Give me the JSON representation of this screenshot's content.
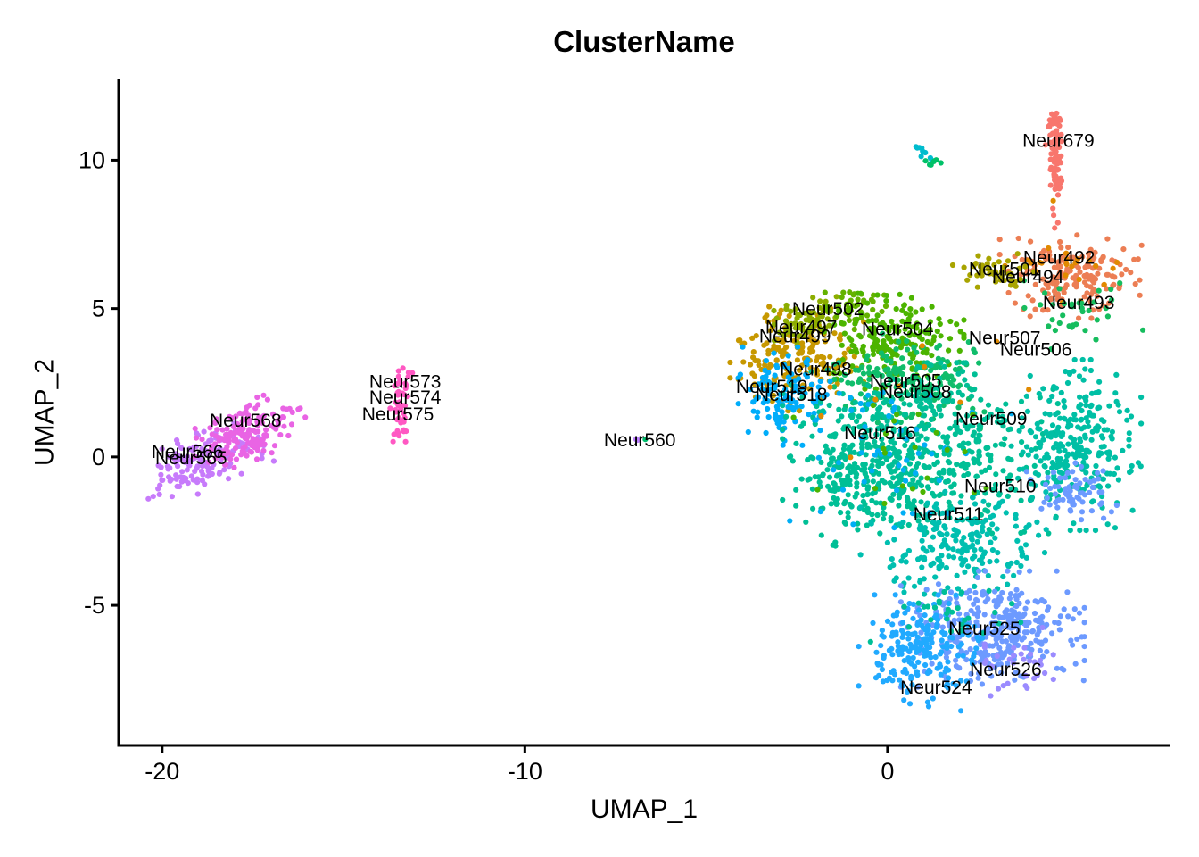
{
  "chart_data": {
    "type": "scatter",
    "title": "ClusterName",
    "xlabel": "UMAP_1",
    "ylabel": "UMAP_2",
    "xlim": [
      -21.2,
      7.8
    ],
    "ylim": [
      -9.72,
      12.75
    ],
    "x_ticks": [
      -20,
      -10,
      0
    ],
    "y_ticks": [
      -5,
      0,
      5,
      10
    ],
    "grid": false,
    "legend": "none",
    "background": "#FFFFFF",
    "axis_color": "#000000",
    "point_radius_px": 3.1,
    "cluster_labels": [
      {
        "text": "Neur566",
        "x": -19.3,
        "y": 0.16
      },
      {
        "text": "Neur565",
        "x": -19.2,
        "y": -0.05
      },
      {
        "text": "Neur568",
        "x": -17.7,
        "y": 1.21
      },
      {
        "text": "Neur573",
        "x": -13.3,
        "y": 2.53
      },
      {
        "text": "Neur574",
        "x": -13.3,
        "y": 1.99
      },
      {
        "text": "Neur575",
        "x": -13.5,
        "y": 1.42
      },
      {
        "text": "Neur560",
        "x": -6.83,
        "y": 0.55
      },
      {
        "text": "Neur679",
        "x": 4.71,
        "y": 10.65
      },
      {
        "text": "Neur492",
        "x": 4.73,
        "y": 6.71
      },
      {
        "text": "Neur501",
        "x": 3.23,
        "y": 6.32
      },
      {
        "text": "Neur494",
        "x": 3.87,
        "y": 6.05
      },
      {
        "text": "Neur493",
        "x": 5.27,
        "y": 5.18
      },
      {
        "text": "Neur502",
        "x": -1.64,
        "y": 4.97
      },
      {
        "text": "Neur497",
        "x": -2.38,
        "y": 4.36
      },
      {
        "text": "Neur499",
        "x": -2.55,
        "y": 4.06
      },
      {
        "text": "Neur504",
        "x": 0.28,
        "y": 4.3
      },
      {
        "text": "Neur507",
        "x": 3.23,
        "y": 4.0
      },
      {
        "text": "Neur506",
        "x": 4.09,
        "y": 3.61
      },
      {
        "text": "Neur498",
        "x": -1.98,
        "y": 2.95
      },
      {
        "text": "Neur505",
        "x": 0.5,
        "y": 2.56
      },
      {
        "text": "Neur519",
        "x": -3.19,
        "y": 2.35
      },
      {
        "text": "Neur518",
        "x": -2.65,
        "y": 2.08
      },
      {
        "text": "Neur508",
        "x": 0.77,
        "y": 2.17
      },
      {
        "text": "Neur516",
        "x": -0.21,
        "y": 0.79
      },
      {
        "text": "Neur509",
        "x": 2.86,
        "y": 1.27
      },
      {
        "text": "Neur510",
        "x": 3.11,
        "y": -0.99
      },
      {
        "text": "Neur511",
        "x": 1.68,
        "y": -1.95
      },
      {
        "text": "Neur525",
        "x": 2.67,
        "y": -5.8
      },
      {
        "text": "Neur526",
        "x": 3.26,
        "y": -7.18
      },
      {
        "text": "Neur524",
        "x": 1.34,
        "y": -7.78
      }
    ],
    "point_groups": [
      {
        "name": "violet-565-566",
        "color": "#C77BFB",
        "type": "blob",
        "cx": -19.0,
        "cy": -0.15,
        "sdx": 0.8,
        "sdy": 0.42,
        "rot": 28,
        "n": 140
      },
      {
        "name": "magenta-568",
        "color": "#E964E4",
        "type": "blob",
        "cx": -17.7,
        "cy": 0.8,
        "sdx": 0.75,
        "sdy": 0.4,
        "rot": 28,
        "n": 150
      },
      {
        "name": "hotpink-573-575",
        "color": "#FF58C3",
        "type": "streak",
        "x1": -13.35,
        "y1": 2.95,
        "x2": -13.5,
        "y2": 0.6,
        "jitter": 0.13,
        "n": 48
      },
      {
        "name": "violet-560-dot",
        "color": "#BD80FF",
        "type": "blob",
        "cx": -6.9,
        "cy": 0.57,
        "sdx": 0.05,
        "sdy": 0.04,
        "rot": 0,
        "n": 2
      },
      {
        "name": "green-560-dot",
        "color": "#00BE6E",
        "type": "blob",
        "cx": -6.7,
        "cy": 0.63,
        "sdx": 0.04,
        "sdy": 0.03,
        "rot": 0,
        "n": 1
      },
      {
        "name": "teal-top-streak",
        "color": "#00BCCE",
        "color2": "#00C168",
        "type": "streak",
        "x1": 0.78,
        "y1": 10.42,
        "x2": 1.32,
        "y2": 9.85,
        "jitter": 0.09,
        "n": 16
      },
      {
        "name": "salmon-679-streak",
        "color": "#F8766D",
        "type": "streak",
        "x1": 4.55,
        "y1": 11.58,
        "x2": 4.66,
        "y2": 9.0,
        "jitter": 0.11,
        "n": 78
      },
      {
        "name": "orange-679-tail-dot",
        "color": "#DE8C00",
        "type": "blob",
        "cx": 4.58,
        "cy": 8.66,
        "sdx": 0.03,
        "sdy": 0.03,
        "rot": 0,
        "n": 1
      },
      {
        "name": "salmon-679-tail",
        "color": "#F8766D",
        "type": "streak",
        "x1": 4.6,
        "y1": 8.35,
        "x2": 4.64,
        "y2": 7.7,
        "jitter": 0.04,
        "n": 4
      },
      {
        "name": "coral-492-493-494",
        "color": "#EC7E54",
        "type": "blob",
        "cx": 5.05,
        "cy": 6.1,
        "sdx": 0.85,
        "sdy": 0.62,
        "rot": 0,
        "n": 175
      },
      {
        "name": "orange-sprinkles-top",
        "color": "#E18A00",
        "type": "blob",
        "cx": 4.9,
        "cy": 6.35,
        "sdx": 0.75,
        "sdy": 0.5,
        "rot": 0,
        "n": 22
      },
      {
        "name": "green-under-coral",
        "color": "#16BD5E",
        "type": "blob",
        "cx": 5.2,
        "cy": 4.75,
        "sdx": 0.8,
        "sdy": 0.55,
        "rot": 0,
        "n": 35
      },
      {
        "name": "olive-501",
        "color": "#A8A400",
        "type": "blob",
        "cx": 3.05,
        "cy": 6.25,
        "sdx": 0.55,
        "sdy": 0.32,
        "rot": 0,
        "n": 45
      },
      {
        "name": "gold-497-498-499",
        "color": "#C79800",
        "type": "blob",
        "cx": -2.5,
        "cy": 3.35,
        "sdx": 0.8,
        "sdy": 0.78,
        "rot": 0,
        "n": 190
      },
      {
        "name": "oliveband-502",
        "color": "#8CAD00",
        "color2": "#64B200",
        "type": "streak",
        "x1": -3.0,
        "y1": 4.35,
        "x2": -0.4,
        "y2": 5.25,
        "jitter": 0.3,
        "n": 110
      },
      {
        "name": "green-504",
        "color": "#4CB400",
        "type": "blob",
        "cx": 0.15,
        "cy": 3.9,
        "sdx": 0.85,
        "sdy": 0.7,
        "rot": 0,
        "n": 200
      },
      {
        "name": "spring-505-508",
        "color": "#10BD6B",
        "type": "blob",
        "cx": 0.6,
        "cy": 2.55,
        "sdx": 0.9,
        "sdy": 0.7,
        "rot": 0,
        "n": 190
      },
      {
        "name": "skyblue-518-519",
        "color": "#00ADFA",
        "type": "blob",
        "cx": -2.85,
        "cy": 2.05,
        "sdx": 0.55,
        "sdy": 0.72,
        "rot": 0,
        "n": 120
      },
      {
        "name": "teal-main",
        "color": "#00BF96",
        "type": "blob",
        "cx": 0.9,
        "cy": 0.3,
        "sdx": 1.65,
        "sdy": 1.25,
        "rot": 0,
        "n": 520
      },
      {
        "name": "teal-right-lobe",
        "color": "#00BFA5",
        "type": "blob",
        "cx": 5.15,
        "cy": 0.4,
        "sdx": 0.8,
        "sdy": 1.25,
        "rot": 0,
        "n": 270
      },
      {
        "name": "teal-lower",
        "color": "#00BFB0",
        "type": "blob",
        "cx": 1.9,
        "cy": -2.9,
        "sdx": 1.15,
        "sdy": 0.75,
        "rot": 0,
        "n": 200
      },
      {
        "name": "teal-left-arm",
        "color": "#00BF96",
        "type": "blob",
        "cx": -0.8,
        "cy": -0.7,
        "sdx": 0.75,
        "sdy": 1.0,
        "rot": 0,
        "n": 150
      },
      {
        "name": "cyan-sprinkles",
        "color": "#00AEF5",
        "type": "blob",
        "cx": 0.2,
        "cy": 0.3,
        "sdx": 1.4,
        "sdy": 1.25,
        "rot": 0,
        "n": 55
      },
      {
        "name": "green-sprinkles",
        "color": "#4CB400",
        "type": "blob",
        "cx": 0.4,
        "cy": 0.2,
        "sdx": 1.3,
        "sdy": 1.0,
        "rot": 0,
        "n": 22
      },
      {
        "name": "cornflower-510-patch",
        "color": "#6D9AFF",
        "type": "blob",
        "cx": 5.1,
        "cy": -1.15,
        "sdx": 0.55,
        "sdy": 0.42,
        "rot": 0,
        "n": 70
      },
      {
        "name": "cornflower-525-526",
        "color": "#6D9AFF",
        "type": "blob",
        "cx": 2.9,
        "cy": -5.8,
        "sdx": 1.1,
        "sdy": 0.85,
        "rot": 0,
        "n": 340
      },
      {
        "name": "azure-524",
        "color": "#21AAFF",
        "type": "blob",
        "cx": 1.0,
        "cy": -6.6,
        "sdx": 0.78,
        "sdy": 0.85,
        "rot": 0,
        "n": 200
      },
      {
        "name": "violet-sprinkles-526",
        "color": "#9B8BFF",
        "type": "blob",
        "cx": 3.5,
        "cy": -6.9,
        "sdx": 0.55,
        "sdy": 0.5,
        "rot": 0,
        "n": 32
      },
      {
        "name": "teal-in-blue",
        "color": "#00BF96",
        "type": "blob",
        "cx": 1.6,
        "cy": -5.2,
        "sdx": 0.9,
        "sdy": 0.6,
        "rot": 0,
        "n": 28
      },
      {
        "name": "orange-strays",
        "color": "#E18A00",
        "type": "blob",
        "cx": 0.8,
        "cy": 2.6,
        "sdx": 1.7,
        "sdy": 1.2,
        "rot": 0,
        "n": 10
      }
    ]
  }
}
